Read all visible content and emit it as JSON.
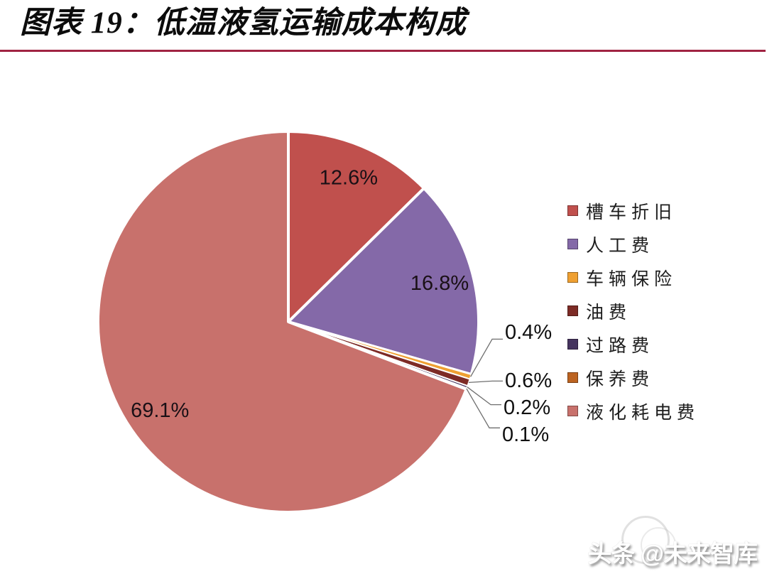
{
  "header": {
    "title": "图表 19：低温液氢运输成本构成",
    "rule_color": "#a02342"
  },
  "chart_data": {
    "type": "pie",
    "title": "低温液氢运输成本构成",
    "figure_label": "图表 19",
    "start_angle_deg": 0,
    "direction": "clockwise",
    "legend_position": "right",
    "separator_color": "#ffffff",
    "slices": [
      {
        "label": "槽车折旧",
        "value": 12.6,
        "display": "12.6%",
        "color": "#c0504d",
        "label_placement": "inside"
      },
      {
        "label": "人工费",
        "value": 16.8,
        "display": "16.8%",
        "color": "#8469a8",
        "label_placement": "inside"
      },
      {
        "label": "车辆保险",
        "value": 0.4,
        "display": "0.4%",
        "color": "#efa032",
        "label_placement": "callout"
      },
      {
        "label": "油费",
        "value": 0.6,
        "display": "0.6%",
        "color": "#7d2b26",
        "label_placement": "callout"
      },
      {
        "label": "过路费",
        "value": 0.2,
        "display": "0.2%",
        "color": "#45345f",
        "label_placement": "callout"
      },
      {
        "label": "保养费",
        "value": 0.1,
        "display": "0.1%",
        "color": "#bc6321",
        "label_placement": "callout"
      },
      {
        "label": "液化耗电费",
        "value": 69.1,
        "display": "69.1%",
        "color": "#c8716c",
        "label_placement": "inside"
      }
    ]
  },
  "watermark": {
    "text": "头条 @未来智库"
  }
}
